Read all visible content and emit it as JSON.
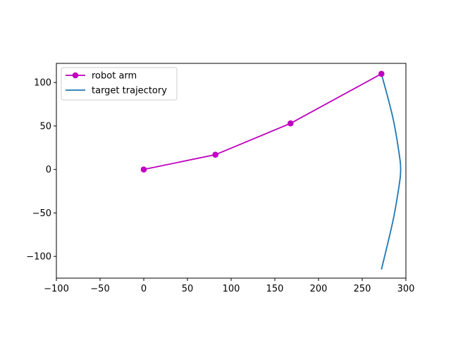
{
  "chart_data": {
    "type": "line",
    "title": "",
    "xlabel": "",
    "ylabel": "",
    "xlim": [
      -100,
      300
    ],
    "ylim": [
      -125,
      122
    ],
    "grid": false,
    "legend_placement": "top-left",
    "x_ticks": [
      -100,
      -50,
      0,
      50,
      100,
      150,
      200,
      250,
      300
    ],
    "y_ticks": [
      -100,
      -50,
      0,
      50,
      100
    ],
    "x_tick_labels": [
      "−100",
      "−50",
      "0",
      "50",
      "100",
      "150",
      "200",
      "250",
      "300"
    ],
    "y_tick_labels": [
      "−100",
      "−50",
      "0",
      "50",
      "100"
    ],
    "series": [
      {
        "name": "robot arm",
        "color": "#bf00bf",
        "marker": "circle",
        "points": [
          [
            0,
            0
          ],
          [
            82,
            17
          ],
          [
            168,
            53
          ],
          [
            272,
            110
          ]
        ]
      },
      {
        "name": "target trajectory",
        "color": "#1f77b4",
        "marker": "none",
        "points": [
          [
            272,
            110
          ],
          [
            285,
            60
          ],
          [
            292,
            20
          ],
          [
            294,
            0
          ],
          [
            292,
            -20
          ],
          [
            285,
            -60
          ],
          [
            272,
            -115
          ]
        ]
      }
    ]
  }
}
